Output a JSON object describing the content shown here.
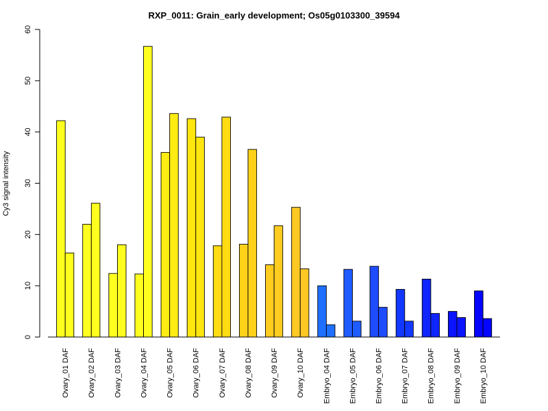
{
  "chart_data": {
    "type": "bar",
    "title": "RXP_0011: Grain_early development; Os05g0103300_39594",
    "xlabel": "",
    "ylabel": "Cy3 signal intensity",
    "ylim": [
      0,
      60
    ],
    "yticks": [
      0,
      10,
      20,
      30,
      40,
      50,
      60
    ],
    "grid": false,
    "legend": "none",
    "categories": [
      "Ovary_01 DAF",
      "Ovary_02 DAF",
      "Ovary_03 DAF",
      "Ovary_04 DAF",
      "Ovary_05 DAF",
      "Ovary_06 DAF",
      "Ovary_07 DAF",
      "Ovary_08 DAF",
      "Ovary_09 DAF",
      "Ovary_10 DAF",
      "Embryo_04 DAF",
      "Embryo_05 DAF",
      "Embryo_06 DAF",
      "Embryo_07 DAF",
      "Embryo_08 DAF",
      "Embryo_09 DAF",
      "Embryo_10 DAF"
    ],
    "series": [
      {
        "values": [
          42.2,
          22.0,
          12.4,
          12.3,
          36.0,
          42.6,
          17.8,
          18.1,
          14.1,
          25.3,
          10.0,
          13.2,
          13.8,
          9.3,
          11.3,
          5.0,
          9.0
        ]
      },
      {
        "values": [
          16.4,
          26.1,
          18.0,
          56.7,
          43.6,
          39.0,
          42.9,
          36.6,
          21.7,
          13.3,
          2.4,
          3.1,
          5.8,
          3.1,
          4.6,
          3.8,
          3.6
        ]
      }
    ],
    "colors": [
      "#ffff1f",
      "#ffff1f",
      "#ffff1f",
      "#ffff1f",
      "#ffec12",
      "#ffe60f",
      "#ffdc14",
      "#ffd219",
      "#ffcc1f",
      "#ffc824",
      "#1f70ff",
      "#1f5cff",
      "#1f4cff",
      "#1238ff",
      "#0f26ff",
      "#0a14ff",
      "#0505ff"
    ]
  }
}
